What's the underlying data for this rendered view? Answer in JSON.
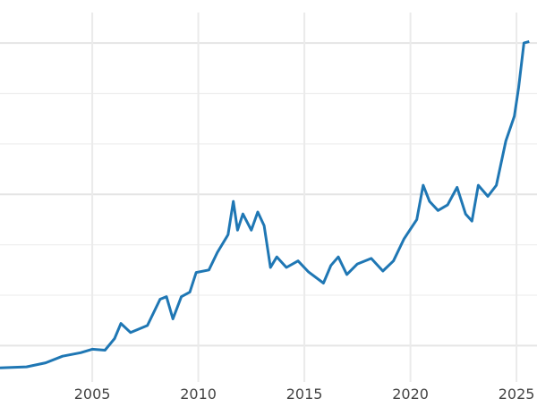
{
  "chart_data": {
    "type": "line",
    "title": "",
    "xlabel": "",
    "ylabel": "",
    "xlim": [
      2000.65,
      2025.65
    ],
    "ylim": [
      140,
      3900
    ],
    "x_ticks": [
      "2005",
      "2010",
      "2015",
      "2020",
      "2025"
    ],
    "y_gridlines": [
      500,
      1000,
      1500,
      2000,
      2500,
      3000,
      3500
    ],
    "grid": true,
    "line_color": "#1f77b4",
    "series": [
      {
        "x": [
          2000.65,
          2001.9,
          2002.8,
          2003.6,
          2004.45,
          2005.0,
          2005.6,
          2006.05,
          2006.35,
          2006.8,
          2007.6,
          2008.2,
          2008.5,
          2008.8,
          2009.2,
          2009.6,
          2009.9,
          2010.5,
          2010.9,
          2011.4,
          2011.65,
          2011.85,
          2012.1,
          2012.5,
          2012.8,
          2013.1,
          2013.4,
          2013.7,
          2014.15,
          2014.7,
          2015.2,
          2015.9,
          2016.25,
          2016.6,
          2017.0,
          2017.5,
          2018.15,
          2018.7,
          2019.2,
          2019.7,
          2020.3,
          2020.6,
          2020.9,
          2021.3,
          2021.75,
          2022.2,
          2022.6,
          2022.9,
          2023.2,
          2023.65,
          2024.05,
          2024.5,
          2024.9,
          2025.1,
          2025.35,
          2025.6
        ],
        "y": [
          280,
          290,
          330,
          395,
          430,
          465,
          455,
          570,
          720,
          630,
          700,
          960,
          985,
          765,
          985,
          1030,
          1225,
          1250,
          1425,
          1600,
          1930,
          1645,
          1805,
          1645,
          1825,
          1690,
          1275,
          1380,
          1275,
          1340,
          1230,
          1120,
          1295,
          1380,
          1205,
          1310,
          1365,
          1240,
          1340,
          1560,
          1750,
          2090,
          1930,
          1840,
          1895,
          2070,
          1805,
          1735,
          2090,
          1980,
          2090,
          2530,
          2775,
          3060,
          3500,
          3515
        ]
      }
    ]
  }
}
